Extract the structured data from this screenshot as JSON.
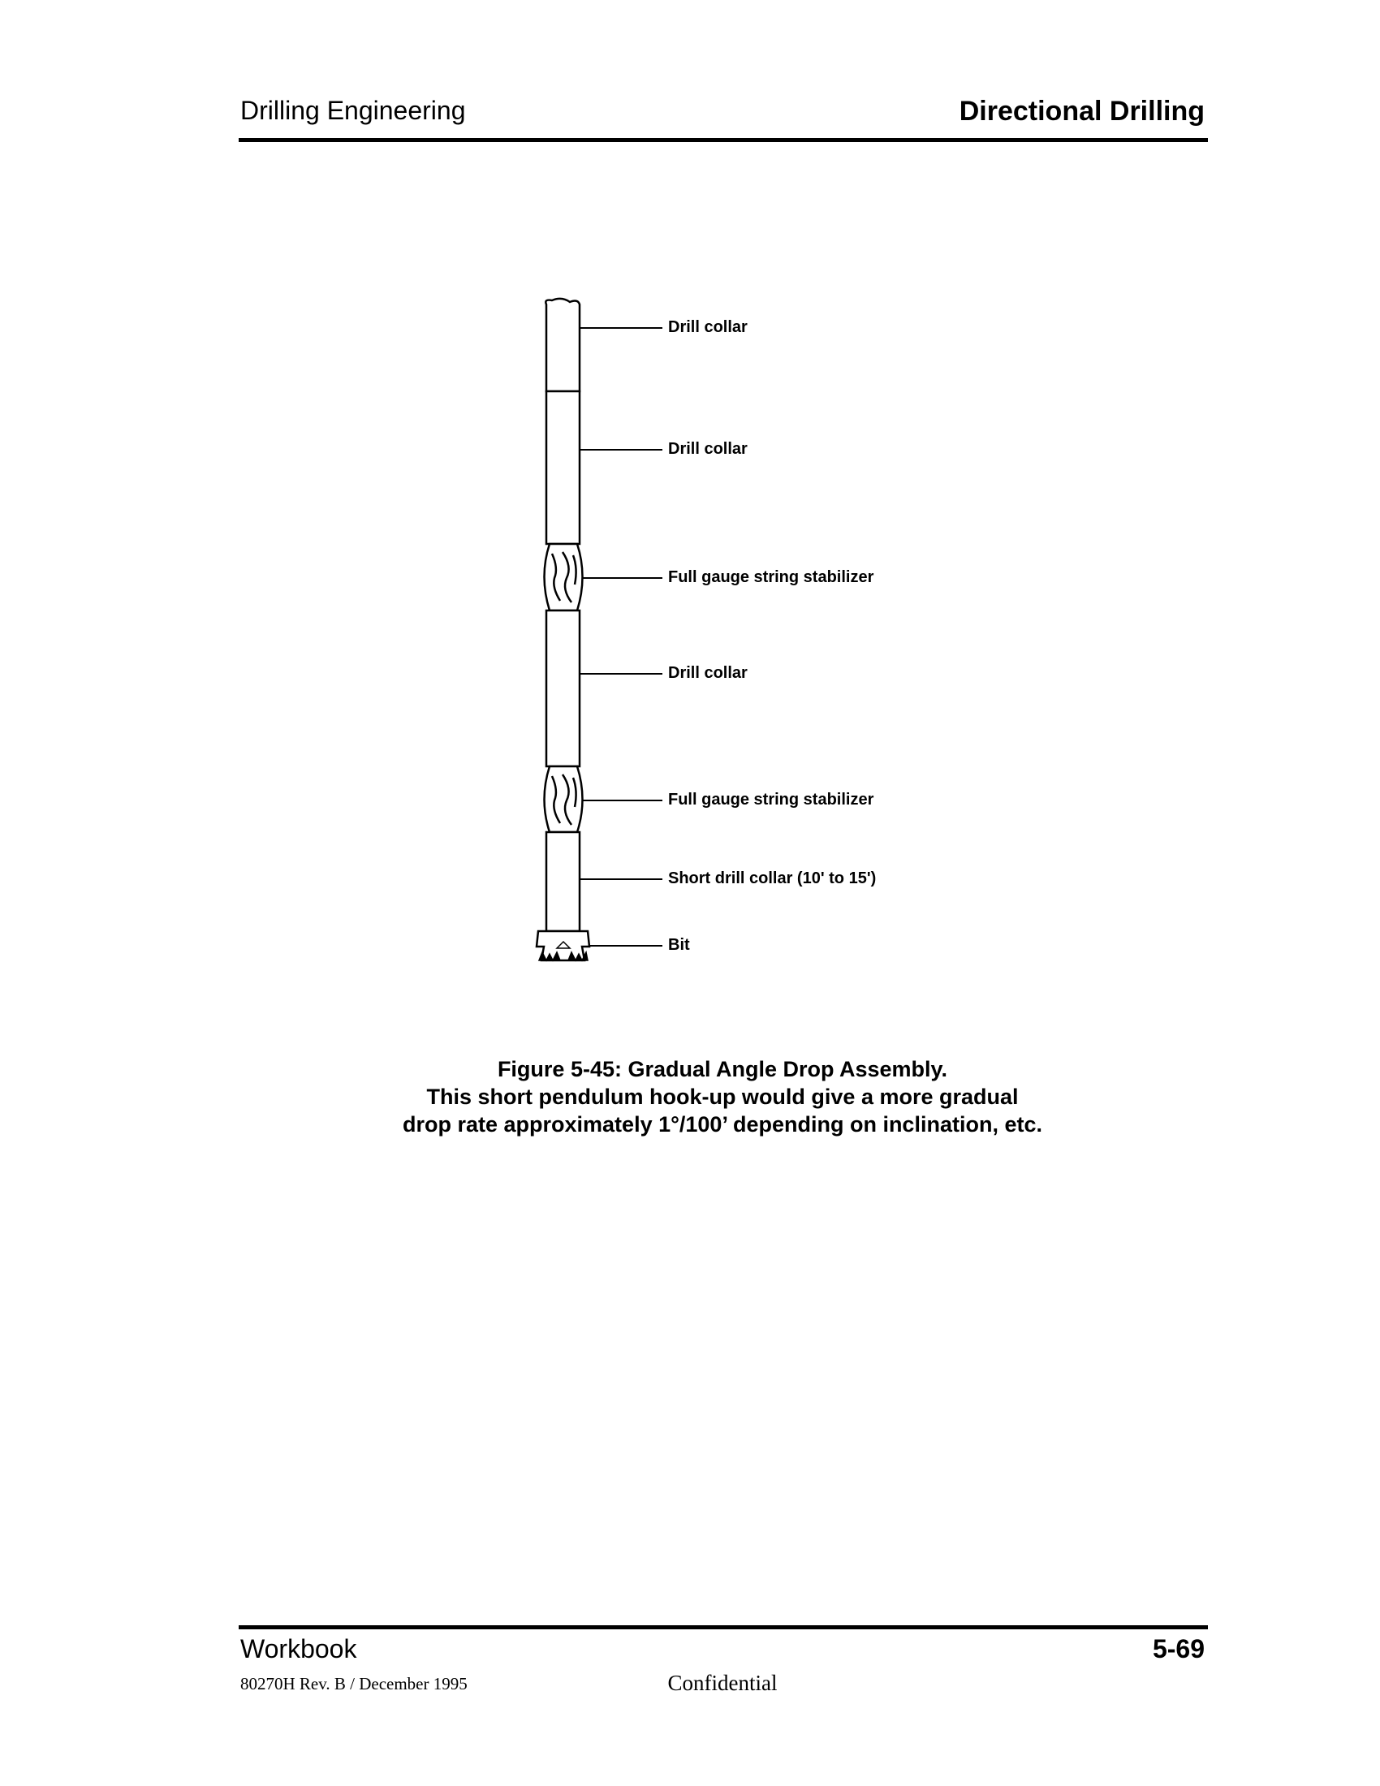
{
  "header": {
    "left_title": "Drilling Engineering",
    "right_title": "Directional Drilling"
  },
  "figure": {
    "labels": [
      "Drill collar",
      "Drill collar",
      "Full gauge string stabilizer",
      "Drill collar",
      "Full gauge string stabilizer",
      "Short drill collar (10' to 15')",
      "Bit"
    ],
    "caption": [
      "Figure 5-45: Gradual Angle Drop Assembly.",
      "This short pendulum hook-up would give a more gradual",
      "drop rate approximately 1°/100’ depending on inclination, etc."
    ]
  },
  "footer": {
    "left": "Workbook",
    "page_number": "5-69",
    "revision": "80270H Rev. B / December 1995",
    "confidentiality": "Confidential"
  }
}
